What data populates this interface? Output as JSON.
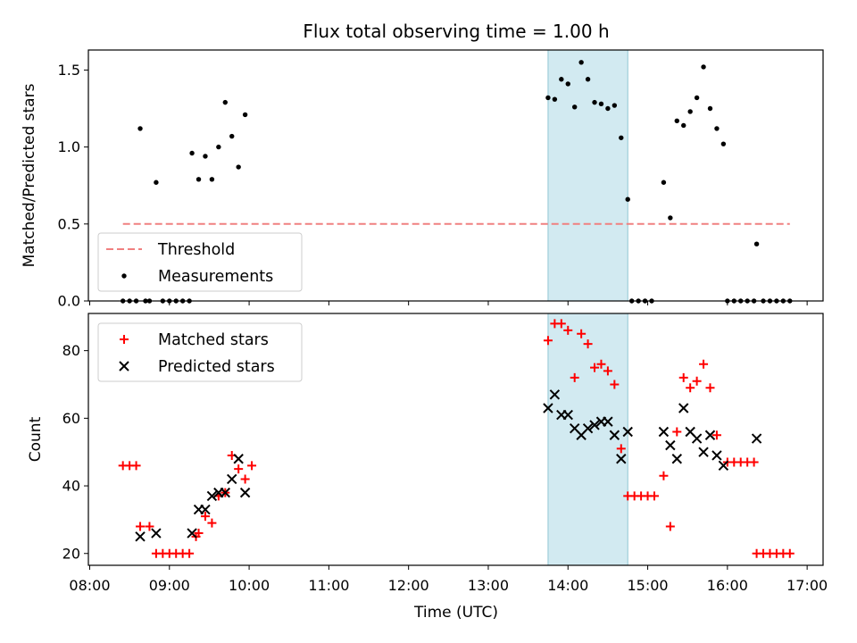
{
  "chart_data": {
    "title": "Flux total observing time = 1.00 h",
    "xlabel": "Time (UTC)",
    "x_ticks": [
      "08:00",
      "09:00",
      "10:00",
      "11:00",
      "12:00",
      "13:00",
      "14:00",
      "15:00",
      "16:00",
      "17:00"
    ],
    "shaded_window": {
      "start": "13:45",
      "end": "14:45",
      "color": "#add8e6"
    },
    "subplots": [
      {
        "type": "scatter",
        "ylabel": "Matched/Predicted stars",
        "ylim": [
          0,
          1.63
        ],
        "y_ticks": [
          "0.0",
          "0.5",
          "1.0",
          "1.5"
        ],
        "legend_position": "lower-left",
        "series": [
          {
            "name": "Threshold",
            "style": "dashed-line",
            "color": "#f08080",
            "points": [
              [
                "08:25",
                0.5
              ],
              [
                "16:47",
                0.5
              ]
            ]
          },
          {
            "name": "Measurements",
            "style": "dot",
            "color": "#000000",
            "points": [
              [
                "08:25",
                0
              ],
              [
                "08:30",
                0
              ],
              [
                "08:35",
                0
              ],
              [
                "08:42",
                0
              ],
              [
                "08:45",
                0
              ],
              [
                "08:55",
                0
              ],
              [
                "09:00",
                0
              ],
              [
                "09:05",
                0
              ],
              [
                "09:10",
                0
              ],
              [
                "09:15",
                0
              ],
              [
                "08:38",
                1.12
              ],
              [
                "08:50",
                0.77
              ],
              [
                "09:17",
                0.96
              ],
              [
                "09:22",
                0.79
              ],
              [
                "09:27",
                0.94
              ],
              [
                "09:32",
                0.79
              ],
              [
                "09:37",
                1.0
              ],
              [
                "09:42",
                1.29
              ],
              [
                "09:47",
                1.07
              ],
              [
                "09:52",
                0.87
              ],
              [
                "09:57",
                1.21
              ],
              [
                "13:45",
                1.32
              ],
              [
                "13:50",
                1.31
              ],
              [
                "13:55",
                1.44
              ],
              [
                "14:00",
                1.41
              ],
              [
                "14:05",
                1.26
              ],
              [
                "14:10",
                1.55
              ],
              [
                "14:15",
                1.44
              ],
              [
                "14:20",
                1.29
              ],
              [
                "14:25",
                1.28
              ],
              [
                "14:30",
                1.25
              ],
              [
                "14:35",
                1.27
              ],
              [
                "14:40",
                1.06
              ],
              [
                "14:45",
                0.66
              ],
              [
                "14:48",
                0
              ],
              [
                "14:53",
                0
              ],
              [
                "14:58",
                0
              ],
              [
                "15:03",
                0
              ],
              [
                "15:12",
                0.77
              ],
              [
                "15:17",
                0.54
              ],
              [
                "15:22",
                1.17
              ],
              [
                "15:27",
                1.14
              ],
              [
                "15:32",
                1.23
              ],
              [
                "15:37",
                1.32
              ],
              [
                "15:42",
                1.52
              ],
              [
                "15:47",
                1.25
              ],
              [
                "15:52",
                1.12
              ],
              [
                "15:57",
                1.02
              ],
              [
                "16:00",
                0
              ],
              [
                "16:05",
                0
              ],
              [
                "16:10",
                0
              ],
              [
                "16:15",
                0
              ],
              [
                "16:20",
                0
              ],
              [
                "16:27",
                0
              ],
              [
                "16:32",
                0
              ],
              [
                "16:37",
                0
              ],
              [
                "16:42",
                0
              ],
              [
                "16:47",
                0
              ],
              [
                "16:22",
                0.37
              ]
            ]
          }
        ]
      },
      {
        "type": "scatter",
        "ylabel": "Count",
        "ylim": [
          16.5,
          91
        ],
        "y_ticks": [
          "20",
          "40",
          "60",
          "80"
        ],
        "legend_position": "upper-left",
        "series": [
          {
            "name": "Matched stars",
            "marker": "+",
            "color": "#ff0000",
            "points": [
              [
                "08:25",
                46
              ],
              [
                "08:30",
                46
              ],
              [
                "08:35",
                46
              ],
              [
                "08:38",
                28
              ],
              [
                "08:45",
                28
              ],
              [
                "08:50",
                20
              ],
              [
                "08:55",
                20
              ],
              [
                "09:00",
                20
              ],
              [
                "09:05",
                20
              ],
              [
                "09:10",
                20
              ],
              [
                "09:15",
                20
              ],
              [
                "09:20",
                25
              ],
              [
                "09:22",
                26
              ],
              [
                "09:27",
                31
              ],
              [
                "09:32",
                29
              ],
              [
                "09:37",
                37
              ],
              [
                "09:42",
                38
              ],
              [
                "09:47",
                49
              ],
              [
                "09:52",
                45
              ],
              [
                "09:57",
                42
              ],
              [
                "10:02",
                46
              ],
              [
                "13:45",
                83
              ],
              [
                "13:50",
                88
              ],
              [
                "13:55",
                88
              ],
              [
                "14:00",
                86
              ],
              [
                "14:05",
                72
              ],
              [
                "14:10",
                85
              ],
              [
                "14:15",
                82
              ],
              [
                "14:20",
                75
              ],
              [
                "14:25",
                76
              ],
              [
                "14:30",
                74
              ],
              [
                "14:35",
                70
              ],
              [
                "14:40",
                51
              ],
              [
                "14:45",
                37
              ],
              [
                "14:50",
                37
              ],
              [
                "14:55",
                37
              ],
              [
                "15:00",
                37
              ],
              [
                "15:05",
                37
              ],
              [
                "15:12",
                43
              ],
              [
                "15:17",
                28
              ],
              [
                "15:22",
                56
              ],
              [
                "15:27",
                72
              ],
              [
                "15:32",
                69
              ],
              [
                "15:37",
                71
              ],
              [
                "15:42",
                76
              ],
              [
                "15:47",
                69
              ],
              [
                "15:52",
                55
              ],
              [
                "16:00",
                47
              ],
              [
                "16:05",
                47
              ],
              [
                "16:10",
                47
              ],
              [
                "16:15",
                47
              ],
              [
                "16:20",
                47
              ],
              [
                "16:22",
                20
              ],
              [
                "16:27",
                20
              ],
              [
                "16:32",
                20
              ],
              [
                "16:37",
                20
              ],
              [
                "16:42",
                20
              ],
              [
                "16:47",
                20
              ]
            ]
          },
          {
            "name": "Predicted stars",
            "marker": "x",
            "color": "#000000",
            "points": [
              [
                "08:38",
                25
              ],
              [
                "08:50",
                26
              ],
              [
                "09:17",
                26
              ],
              [
                "09:22",
                33
              ],
              [
                "09:27",
                33
              ],
              [
                "09:32",
                37
              ],
              [
                "09:37",
                38
              ],
              [
                "09:42",
                38
              ],
              [
                "09:47",
                42
              ],
              [
                "09:52",
                48
              ],
              [
                "09:57",
                38
              ],
              [
                "13:45",
                63
              ],
              [
                "13:50",
                67
              ],
              [
                "13:55",
                61
              ],
              [
                "14:00",
                61
              ],
              [
                "14:05",
                57
              ],
              [
                "14:10",
                55
              ],
              [
                "14:15",
                57
              ],
              [
                "14:20",
                58
              ],
              [
                "14:25",
                59
              ],
              [
                "14:30",
                59
              ],
              [
                "14:35",
                55
              ],
              [
                "14:40",
                48
              ],
              [
                "14:45",
                56
              ],
              [
                "15:12",
                56
              ],
              [
                "15:17",
                52
              ],
              [
                "15:22",
                48
              ],
              [
                "15:27",
                63
              ],
              [
                "15:32",
                56
              ],
              [
                "15:37",
                54
              ],
              [
                "15:42",
                50
              ],
              [
                "15:47",
                55
              ],
              [
                "15:52",
                49
              ],
              [
                "15:57",
                46
              ],
              [
                "16:22",
                54
              ]
            ]
          }
        ]
      }
    ]
  }
}
